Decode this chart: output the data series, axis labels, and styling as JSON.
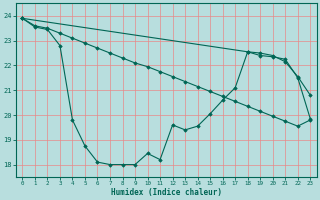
{
  "xlabel": "Humidex (Indice chaleur)",
  "bg_color": "#b8dede",
  "grid_color": "#e88888",
  "line_color": "#006655",
  "xlim": [
    -0.5,
    23.5
  ],
  "ylim": [
    17.5,
    24.5
  ],
  "yticks": [
    18,
    19,
    20,
    21,
    22,
    23,
    24
  ],
  "xticks": [
    0,
    1,
    2,
    3,
    4,
    5,
    6,
    7,
    8,
    9,
    10,
    11,
    12,
    13,
    14,
    15,
    16,
    17,
    18,
    19,
    20,
    21,
    22,
    23
  ],
  "line1_x": [
    0,
    1,
    2,
    3,
    4,
    5,
    6,
    7,
    8,
    9,
    10,
    11,
    12,
    13,
    14,
    15,
    16,
    17,
    18,
    19,
    20,
    21,
    22,
    23
  ],
  "line1_y": [
    23.9,
    23.6,
    23.5,
    23.3,
    23.1,
    22.9,
    22.7,
    22.5,
    22.3,
    22.1,
    21.95,
    21.75,
    21.55,
    21.35,
    21.15,
    20.95,
    20.75,
    20.55,
    20.35,
    20.15,
    19.95,
    19.75,
    19.55,
    19.8
  ],
  "line2_x": [
    0,
    1,
    2,
    3,
    4,
    5,
    6,
    7,
    8,
    9,
    10,
    11,
    12,
    13,
    14,
    15,
    16,
    17,
    18,
    19,
    20,
    21,
    22,
    23
  ],
  "line2_y": [
    23.9,
    23.55,
    23.45,
    22.8,
    19.8,
    18.75,
    18.1,
    18.0,
    18.0,
    18.0,
    18.45,
    18.2,
    19.6,
    19.4,
    19.55,
    20.05,
    20.6,
    21.1,
    22.55,
    22.5,
    22.4,
    22.15,
    21.55,
    20.8
  ],
  "line3_x": [
    0,
    18,
    19,
    20,
    21,
    22,
    23
  ],
  "line3_y": [
    23.9,
    22.55,
    22.4,
    22.35,
    22.25,
    21.5,
    19.85
  ]
}
